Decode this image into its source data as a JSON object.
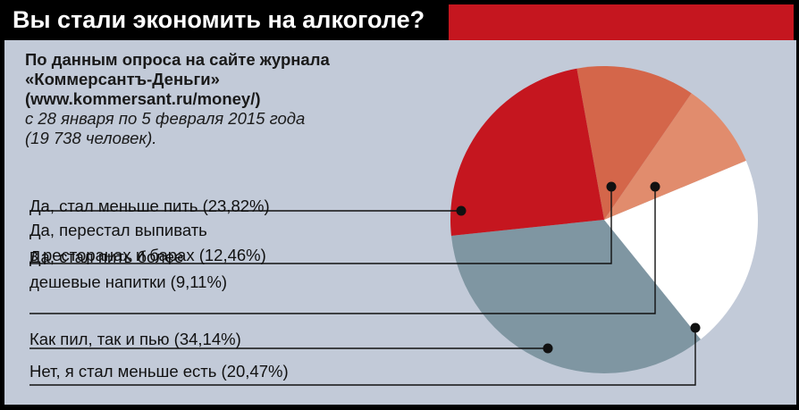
{
  "title": "Вы стали экономить на алкоголе?",
  "subtitle": {
    "line1": "По данным опроса на сайте журнала",
    "line2": "«Коммерсантъ-Деньги»",
    "line3": "(www.kommersant.ru/money/)",
    "line4": "с 28 января по 5 февраля 2015 года",
    "line5": "(19 738 человек)."
  },
  "colors": {
    "accent": "#c5161f",
    "panel": "#c2cad8"
  },
  "chart_data": {
    "type": "pie",
    "slices": [
      {
        "label": [
          "Да, стал меньше пить (23,82%)"
        ],
        "value": 23.82,
        "color": "#c5161f"
      },
      {
        "label": [
          "Да, перестал выпивать",
          "в ресторанах и барах (12,46%)"
        ],
        "value": 12.46,
        "color": "#d4664a"
      },
      {
        "label": [
          "Да, стал пить более",
          "дешевые напитки (9,11%)"
        ],
        "value": 9.11,
        "color": "#e18c6d"
      },
      {
        "label": [
          "Как пил, так и пью (34,14%)"
        ],
        "value": 34.14,
        "color": "#7f96a2"
      },
      {
        "label": [
          "Нет, я стал меньше есть (20,47%)"
        ],
        "value": 20.47,
        "color": "#ffffff"
      }
    ]
  }
}
